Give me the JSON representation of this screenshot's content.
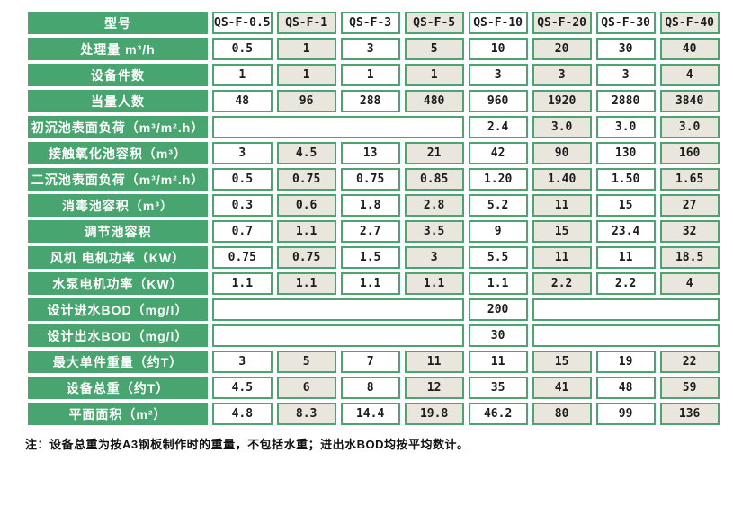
{
  "colors": {
    "cell_green": "#48a56f",
    "alt_column_beige": "#e8e6dd",
    "label_text": "#ffffff",
    "value_text": "#1c1c1c"
  },
  "table": {
    "header": {
      "label": "型号",
      "models": [
        "QS-F-0.5",
        "QS-F-1",
        "QS-F-3",
        "QS-F-5",
        "QS-F-10",
        "QS-F-20",
        "QS-F-30",
        "QS-F-40"
      ]
    },
    "rows": [
      {
        "label": "处理量 m³/h",
        "values": [
          "0.5",
          "1",
          "3",
          "5",
          "10",
          "20",
          "30",
          "40"
        ]
      },
      {
        "label": "设备件数",
        "values": [
          "1",
          "1",
          "1",
          "1",
          "3",
          "3",
          "3",
          "4"
        ]
      },
      {
        "label": "当量人数",
        "values": [
          "48",
          "96",
          "288",
          "480",
          "960",
          "1920",
          "2880",
          "3840"
        ]
      },
      {
        "label": "初沉池表面负荷（m³/m².h）",
        "values": [
          "",
          "",
          "",
          "",
          "2.4",
          "3.0",
          "3.0",
          "3.0"
        ]
      },
      {
        "label": "接触氧化池容积（m³）",
        "values": [
          "3",
          "4.5",
          "13",
          "21",
          "42",
          "90",
          "130",
          "160"
        ]
      },
      {
        "label": "二沉池表面负荷（m³/m².h）",
        "values": [
          "0.5",
          "0.75",
          "0.75",
          "0.85",
          "1.20",
          "1.40",
          "1.50",
          "1.65"
        ]
      },
      {
        "label": "消毒池容积（m³）",
        "values": [
          "0.3",
          "0.6",
          "1.8",
          "2.8",
          "5.2",
          "11",
          "15",
          "27"
        ]
      },
      {
        "label": "调节池容积",
        "values": [
          "0.7",
          "1.1",
          "2.7",
          "3.5",
          "9",
          "15",
          "23.4",
          "32"
        ]
      },
      {
        "label": "风机 电机功率（KW）",
        "values": [
          "0.75",
          "0.75",
          "1.5",
          "3",
          "5.5",
          "11",
          "11",
          "18.5"
        ]
      },
      {
        "label": "水泵电机功率（KW）",
        "values": [
          "1.1",
          "1.1",
          "1.1",
          "1.1",
          "1.1",
          "2.2",
          "2.2",
          "4"
        ]
      },
      {
        "label": "设计进水BOD（mg/l）",
        "values": [
          "",
          "",
          "",
          "",
          "200",
          "",
          "",
          ""
        ]
      },
      {
        "label": "设计出水BOD（mg/l）",
        "values": [
          "",
          "",
          "",
          "",
          "30",
          "",
          "",
          ""
        ]
      },
      {
        "label": "最大单件重量（约T）",
        "values": [
          "3",
          "5",
          "7",
          "11",
          "11",
          "15",
          "19",
          "22"
        ]
      },
      {
        "label": "设备总重（约T）",
        "values": [
          "4.5",
          "6",
          "8",
          "12",
          "35",
          "41",
          "48",
          "59"
        ]
      },
      {
        "label": "平面面积（m²）",
        "values": [
          "4.8",
          "8.3",
          "14.4",
          "19.8",
          "46.2",
          "80",
          "99",
          "136"
        ]
      }
    ],
    "note": "注：设备总重为按A3钢板制作时的重量，不包括水重；进出水BOD均按平均数计。"
  }
}
